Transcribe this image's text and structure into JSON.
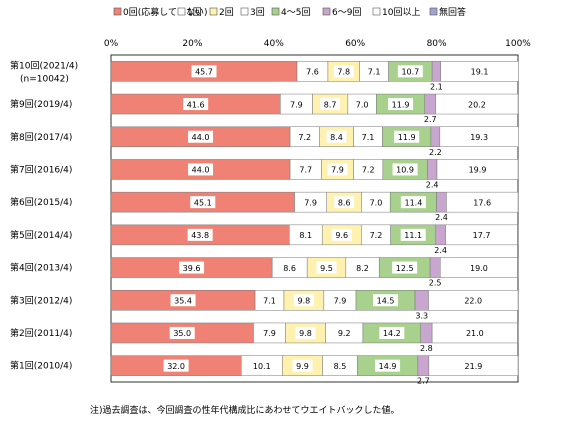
{
  "chart_data": {
    "type": "bar",
    "stacked": true,
    "orientation": "horizontal",
    "percent_scale": true,
    "xlim": [
      0,
      100
    ],
    "x_ticks": [
      "0%",
      "20%",
      "40%",
      "60%",
      "80%",
      "100%"
    ],
    "legend_position": "top",
    "categories": [
      "第10回(2021/4)\n(n=10042)",
      "第9回(2019/4)",
      "第8回(2017/4)",
      "第7回(2016/4)",
      "第6回(2015/4)",
      "第5回(2014/4)",
      "第4回(2013/4)",
      "第3回(2012/4)",
      "第2回(2011/4)",
      "第1回(2010/4)"
    ],
    "series": [
      {
        "name": "0回(応募していない)",
        "color": "#F08275",
        "values": [
          45.7,
          41.6,
          44.0,
          44.0,
          45.1,
          43.8,
          39.6,
          35.4,
          35.0,
          32.0
        ]
      },
      {
        "name": "1回",
        "color": "#FFFFFF",
        "values": [
          7.6,
          7.9,
          7.2,
          7.7,
          7.9,
          8.1,
          8.6,
          7.1,
          7.9,
          10.1
        ]
      },
      {
        "name": "2回",
        "color": "#FFF2B0",
        "values": [
          7.8,
          8.7,
          8.4,
          7.9,
          8.6,
          9.6,
          9.5,
          9.8,
          9.8,
          9.9
        ]
      },
      {
        "name": "3回",
        "color": "#FFFFFF",
        "values": [
          7.1,
          7.0,
          7.1,
          7.2,
          7.0,
          7.2,
          8.2,
          7.9,
          9.2,
          8.5
        ]
      },
      {
        "name": "4～5回",
        "color": "#A9D18E",
        "values": [
          10.7,
          11.9,
          11.9,
          10.9,
          11.4,
          11.1,
          12.5,
          14.5,
          14.2,
          14.9
        ]
      },
      {
        "name": "6～9回",
        "color": "#C9A6CF",
        "values": [
          2.1,
          2.7,
          2.2,
          2.4,
          2.4,
          2.4,
          2.5,
          3.3,
          2.8,
          2.7
        ]
      },
      {
        "name": "10回以上",
        "color": "#FFFFFF",
        "values": [
          19.1,
          20.2,
          19.3,
          19.9,
          17.6,
          17.7,
          19.0,
          22.0,
          21.0,
          21.9
        ]
      },
      {
        "name": "無回答",
        "color": "#9FA5CC",
        "values": [
          0,
          0,
          0,
          0,
          0,
          0,
          0,
          0,
          0,
          0
        ]
      }
    ],
    "value_labels": [
      [
        "45.7",
        "7.6",
        "7.8",
        "7.1",
        "10.7",
        "2.1",
        "19.1"
      ],
      [
        "41.6",
        "7.9",
        "8.7",
        "7.0",
        "11.9",
        "2.7",
        "20.2"
      ],
      [
        "44.0",
        "7.2",
        "8.4",
        "7.1",
        "11.9",
        "2.2",
        "19.3"
      ],
      [
        "44.0",
        "7.7",
        "7.9",
        "7.2",
        "10.9",
        "2.4",
        "19.9"
      ],
      [
        "45.1",
        "7.9",
        "8.6",
        "7.0",
        "11.4",
        "2.4",
        "17.6"
      ],
      [
        "43.8",
        "8.1",
        "9.6",
        "7.2",
        "11.1",
        "2.4",
        "17.7"
      ],
      [
        "39.6",
        "8.6",
        "9.5",
        "8.2",
        "12.5",
        "2.5",
        "19.0"
      ],
      [
        "35.4",
        "7.1",
        "9.8",
        "7.9",
        "14.5",
        "3.3",
        "22.0"
      ],
      [
        "35.0",
        "7.9",
        "9.8",
        "9.2",
        "14.2",
        "2.8",
        "21.0"
      ],
      [
        "32.0",
        "10.1",
        "9.9",
        "8.5",
        "14.9",
        "2.7",
        "21.9"
      ]
    ]
  },
  "footnote": "注)過去調査は、今回調査の性年代構成比にあわせてウエイトバックした値。"
}
